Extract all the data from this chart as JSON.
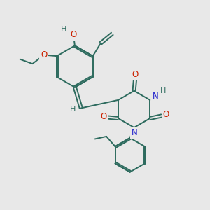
{
  "background_color": "#e8e8e8",
  "bond_color": "#2d6b5e",
  "oxygen_color": "#cc2200",
  "nitrogen_color": "#2222cc",
  "line_width": 1.4,
  "figsize": [
    3.0,
    3.0
  ],
  "dpi": 100,
  "xlim": [
    0,
    10
  ],
  "ylim": [
    0,
    10
  ]
}
